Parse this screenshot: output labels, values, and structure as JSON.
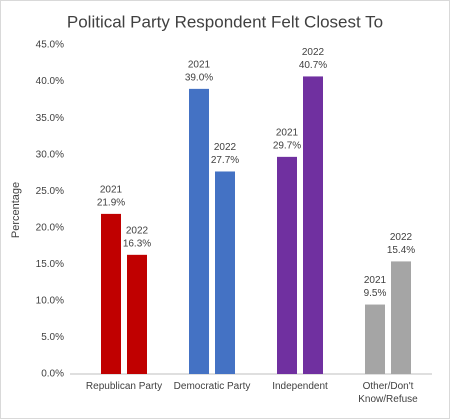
{
  "chart_data": {
    "type": "bar",
    "title": "Political Party Respondent Felt Closest To",
    "y_label": "Percentage",
    "categories": [
      "Republican Party",
      "Democratic Party",
      "Independent",
      "Other/Don't Know/Refuse"
    ],
    "colors": [
      "#c00000",
      "#4472c4",
      "#7030a0",
      "#a5a5a5"
    ],
    "series": [
      {
        "name": "2021",
        "values": [
          21.9,
          39.0,
          29.7,
          9.5
        ],
        "value_labels": [
          "21.9%",
          "39.0%",
          "29.7%",
          "9.5%"
        ]
      },
      {
        "name": "2022",
        "values": [
          16.3,
          27.7,
          40.7,
          15.4
        ],
        "value_labels": [
          "16.3%",
          "27.7%",
          "40.7%",
          "15.4%"
        ]
      }
    ],
    "ylim": [
      0,
      45
    ],
    "yticks": [
      {
        "value": 0,
        "label": "0.0%"
      },
      {
        "value": 5,
        "label": "5.0%"
      },
      {
        "value": 10,
        "label": "10.0%"
      },
      {
        "value": 15,
        "label": "15.0%"
      },
      {
        "value": 20,
        "label": "20.0%"
      },
      {
        "value": 25,
        "label": "25.0%"
      },
      {
        "value": 30,
        "label": "30.0%"
      },
      {
        "value": 35,
        "label": "35.0%"
      },
      {
        "value": 40,
        "label": "40.0%"
      },
      {
        "value": 45,
        "label": "45.0%"
      }
    ],
    "grid": false
  }
}
